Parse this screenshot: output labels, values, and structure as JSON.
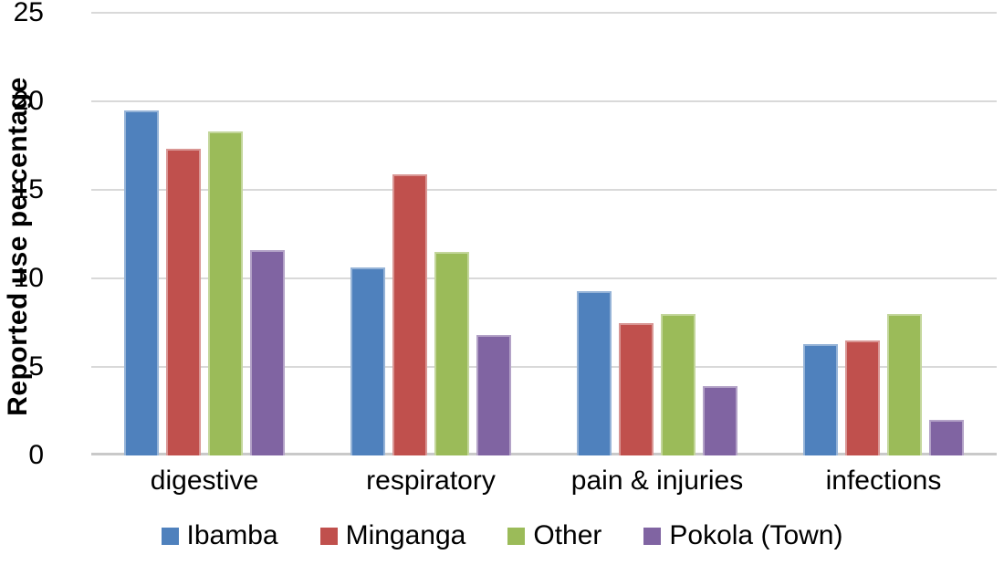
{
  "chart_data": {
    "type": "bar",
    "title": "",
    "xlabel": "",
    "ylabel": "Reported use percentage",
    "ylim": [
      0,
      25
    ],
    "yticks": [
      0,
      5,
      10,
      15,
      20,
      25
    ],
    "grid": "horizontal",
    "legend_position": "bottom",
    "categories": [
      "digestive",
      "respiratory",
      "pain & injuries",
      "infections"
    ],
    "series": [
      {
        "name": "Ibamba",
        "color": "#4F81BD",
        "values": [
          19.5,
          10.6,
          9.3,
          6.3
        ]
      },
      {
        "name": "Minganga",
        "color": "#C0504D",
        "values": [
          17.3,
          15.9,
          7.5,
          6.5
        ]
      },
      {
        "name": "Other",
        "color": "#9BBB59",
        "values": [
          18.3,
          11.5,
          8.0,
          8.0
        ]
      },
      {
        "name": "Pokola (Town)",
        "color": "#8064A2",
        "values": [
          11.6,
          6.8,
          3.9,
          2.0
        ]
      }
    ],
    "colors": {
      "gridline": "#D9D9D9",
      "axis_line": "#C9C9C9",
      "text": "#000000",
      "background": "#FFFFFF"
    }
  }
}
